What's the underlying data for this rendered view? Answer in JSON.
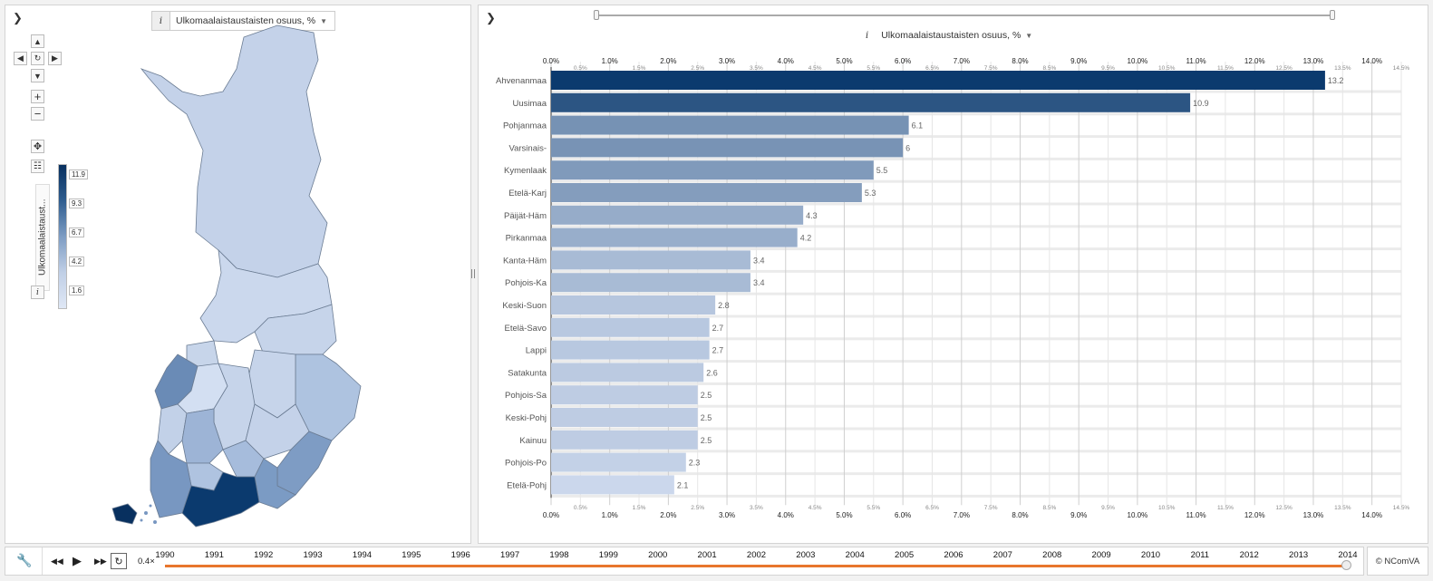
{
  "map_panel": {
    "collapse_icon": "❯",
    "info_label": "i",
    "variable_label": "Ulkomaalaistaustaisten osuus, %",
    "legend": {
      "title": "Ulkomaalaistaust...",
      "info_label": "i",
      "stops": [
        "11.9",
        "9.3",
        "6.7",
        "4.2",
        "1.6"
      ]
    }
  },
  "chart_panel": {
    "collapse_icon": "❯",
    "info_label": "i",
    "title": "Ulkomaalaistaustaisten osuus, %"
  },
  "colors": {
    "dark": "#0b3a6e",
    "light": "#cbd7ec",
    "accent": "#e8762d"
  },
  "chart_data": {
    "type": "bar",
    "orientation": "horizontal",
    "title": "Ulkomaalaistaustaisten osuus, %",
    "categories": [
      "Ahvenanmaa",
      "Uusimaa",
      "Pohjanmaa",
      "Varsinais-S",
      "Kymenlaak",
      "Etelä-Karja",
      "Päijät-Häm",
      "Pirkanmaa",
      "Kanta-Häm",
      "Pohjois-Kar",
      "Keski-Suon",
      "Etelä-Savo",
      "Lappi",
      "Satakunta",
      "Pohjois-Sav",
      "Keski-Pohj",
      "Kainuu",
      "Pohjois-Pol",
      "Etelä-Pohja"
    ],
    "values": [
      13.2,
      10.9,
      6.1,
      6,
      5.5,
      5.3,
      4.3,
      4.2,
      3.4,
      3.4,
      2.8,
      2.7,
      2.7,
      2.6,
      2.5,
      2.5,
      2.5,
      2.3,
      2.1
    ],
    "value_labels": [
      "13.2",
      "10.9",
      "6.1",
      "6",
      "5.5",
      "5.3",
      "4.3",
      "4.2",
      "3.4",
      "3.4",
      "2.8",
      "2.7",
      "2.7",
      "2.6",
      "2.5",
      "2.5",
      "2.5",
      "2.3",
      "2.1"
    ],
    "xlim": [
      0,
      14.5
    ],
    "major_ticks": [
      "0.0%",
      "1.0%",
      "2.0%",
      "3.0%",
      "4.0%",
      "5.0%",
      "6.0%",
      "7.0%",
      "8.0%",
      "9.0%",
      "10.0%",
      "11.0%",
      "12.0%",
      "13.0%",
      "14.0%"
    ],
    "minor_ticks": [
      "0.5%",
      "1.5%",
      "2.5%",
      "3.5%",
      "4.5%",
      "5.5%",
      "6.5%",
      "7.5%",
      "8.5%",
      "9.5%",
      "10.5%",
      "11.5%",
      "12.5%",
      "13.5%",
      "14.5%"
    ]
  },
  "timeline": {
    "speed": "0.4×",
    "years": [
      "1990",
      "1991",
      "1992",
      "1993",
      "1994",
      "1995",
      "1996",
      "1997",
      "1998",
      "1999",
      "2000",
      "2001",
      "2002",
      "2003",
      "2004",
      "2005",
      "2006",
      "2007",
      "2008",
      "2009",
      "2010",
      "2011",
      "2012",
      "2013",
      "2014"
    ],
    "current_year": "2014"
  },
  "brand": "© NComVA"
}
